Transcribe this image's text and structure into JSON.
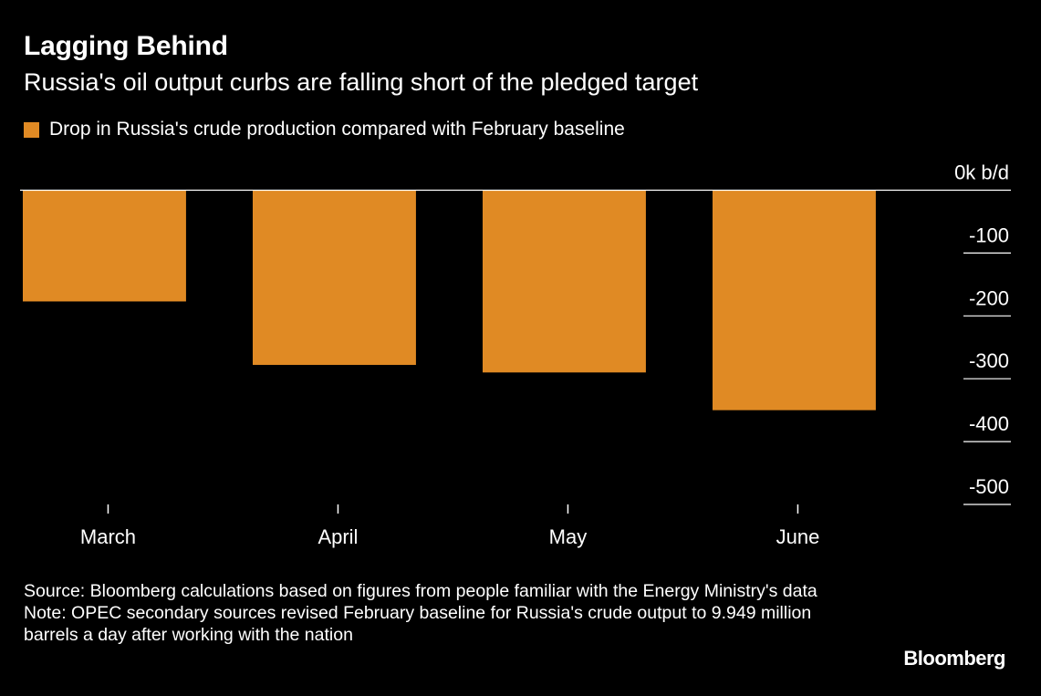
{
  "title": "Lagging Behind",
  "subtitle": "Russia's oil output curbs are falling short of the pledged target",
  "legend": {
    "label": "Drop in Russia's crude production compared with February baseline",
    "color": "#E08A24"
  },
  "colors": {
    "background": "#000000",
    "bar": "#E08A24",
    "zero_line": "#ffffff",
    "tick": "#ffffff"
  },
  "chart_data": {
    "type": "bar",
    "categories": [
      "March",
      "April",
      "May",
      "June"
    ],
    "values": [
      -177,
      -278,
      -290,
      -350
    ],
    "ylim": [
      -500,
      0
    ],
    "y_ticks": [
      0,
      -100,
      -200,
      -300,
      -400,
      -500
    ],
    "y_tick_labels": [
      "0k b/d",
      "-100",
      "-200",
      "-300",
      "-400",
      "-500"
    ],
    "y_axis_position": "right",
    "grid": false,
    "legend_position": "top-left"
  },
  "footer": {
    "source": "Source: Bloomberg calculations based on figures from people familiar with the Energy Ministry's data",
    "note": "Note: OPEC secondary sources revised February baseline for Russia's crude output to 9.949 million barrels a day after working with the nation"
  },
  "brand": "Bloomberg"
}
